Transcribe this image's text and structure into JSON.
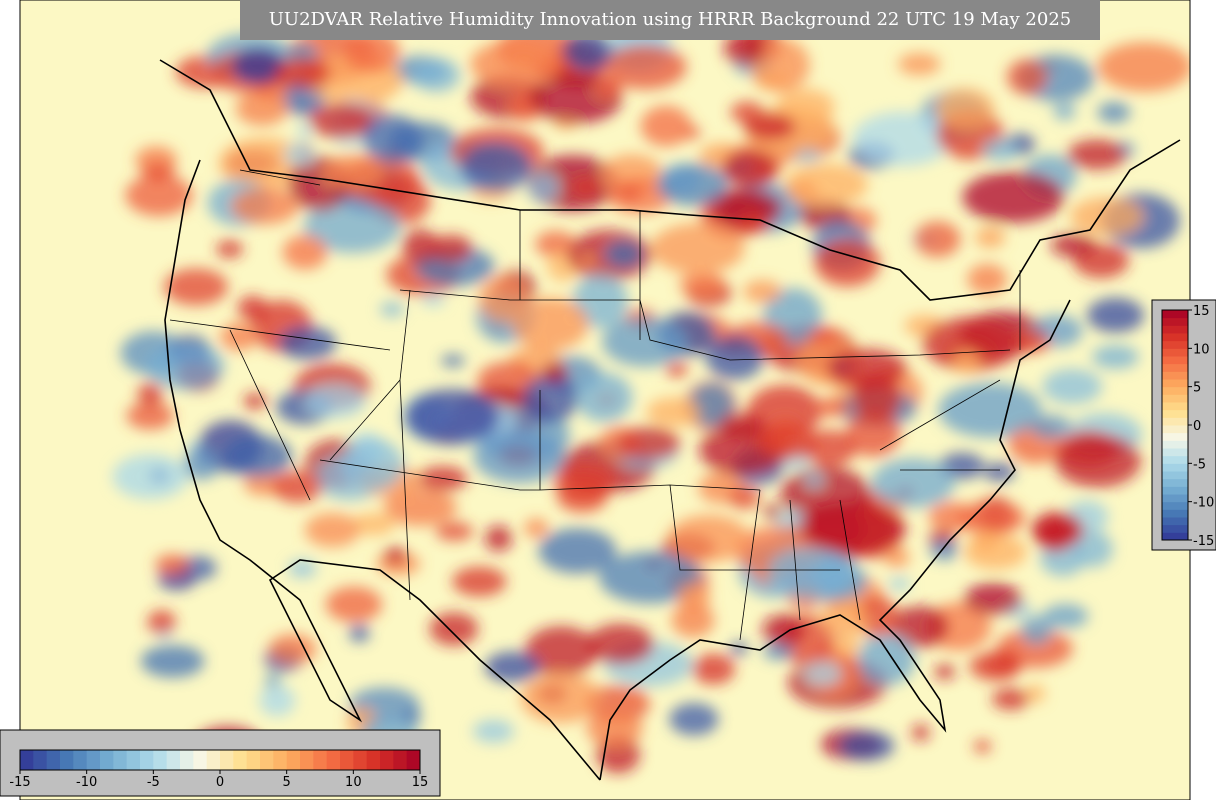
{
  "title": "UU2DVAR Relative Humidity Innovation using HRRR Background 22 UTC 19 May 2025",
  "colorbar": {
    "ticks": [
      -15,
      -10,
      -5,
      0,
      5,
      10,
      15
    ],
    "range": [
      -15,
      15
    ],
    "colormap": [
      "#313695",
      "#4575b4",
      "#74add1",
      "#abd9e9",
      "#f7f7e8",
      "#fee090",
      "#fdae61",
      "#f46d43",
      "#d73027",
      "#a50026"
    ]
  }
}
